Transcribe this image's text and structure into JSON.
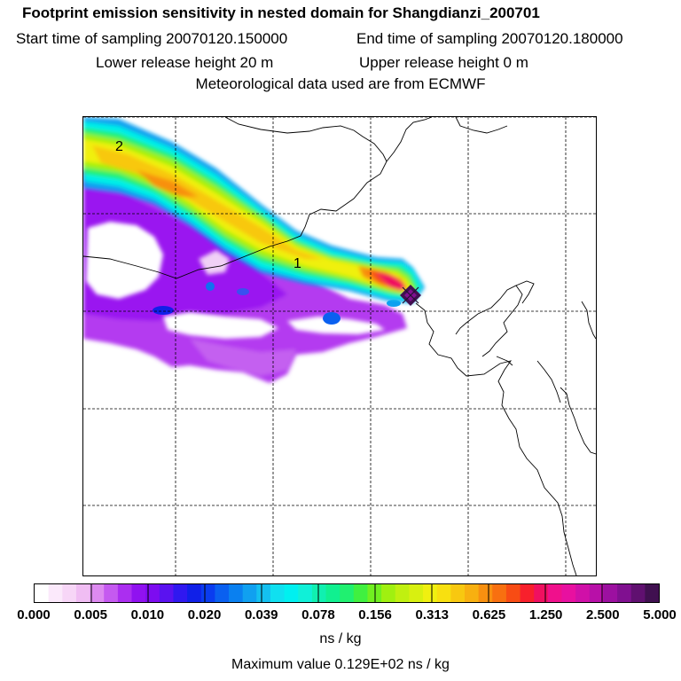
{
  "title": "Footprint emission sensitivity in nested domain for Shangdianzi_200701",
  "start_sampling": "Start time of sampling 20070120.150000",
  "end_sampling": "End time of sampling 20070120.180000",
  "lower_release": "Lower release height   20 m",
  "upper_release": "Upper release height    0 m",
  "met_data": "Meteorological data used are from ECMWF",
  "contour_labels": [
    "1",
    "2"
  ],
  "colorbar": {
    "tick_labels": [
      "0.000",
      "0.005",
      "0.010",
      "0.020",
      "0.039",
      "0.078",
      "0.156",
      "0.313",
      "0.625",
      "1.250",
      "2.500",
      "5.000"
    ],
    "colors": [
      "#ffffff",
      "#fbe9fb",
      "#f7d6f7",
      "#f0bdf3",
      "#dd8af0",
      "#c55af0",
      "#ab2ef0",
      "#9012f0",
      "#7d0cf0",
      "#5a12f0",
      "#3018f0",
      "#1020e8",
      "#0a3cf0",
      "#0a60f0",
      "#0a80f0",
      "#10a0f0",
      "#14c0f0",
      "#10e0f0",
      "#00f0f0",
      "#10f0d8",
      "#10f0b0",
      "#10f090",
      "#20f070",
      "#40f040",
      "#70f020",
      "#a0f010",
      "#c0f010",
      "#d8f010",
      "#f0f010",
      "#f8e010",
      "#f8c810",
      "#f8b010",
      "#f89010",
      "#f87010",
      "#f84c14",
      "#f8202c",
      "#f01060",
      "#f0108c",
      "#e810a0",
      "#d010a8",
      "#b810a8",
      "#9c10a0",
      "#801090",
      "#601070",
      "#401050"
    ],
    "units": "ns / kg"
  },
  "max_value": "Maximum value  0.129E+02 ns / kg"
}
